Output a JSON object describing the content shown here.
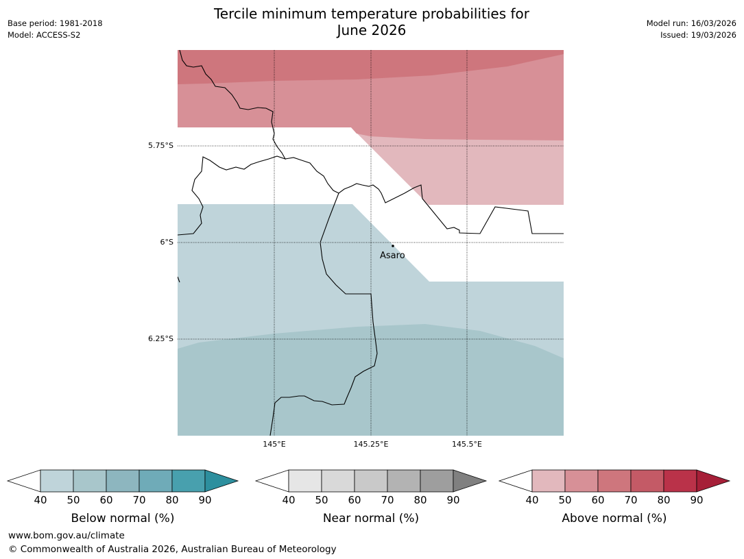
{
  "title_line1": "Tercile minimum temperature probabilities for",
  "title_line2": "June 2026",
  "meta_left": {
    "base_period": "Base period: 1981-2018",
    "model": "Model: ACCESS-S2"
  },
  "meta_right": {
    "model_run": "Model run: 16/03/2026",
    "issued": "Issued: 19/03/2026"
  },
  "map": {
    "lat_labels": [
      "5.75°S",
      "6°S",
      "6.25°S"
    ],
    "lon_labels": [
      "145°E",
      "145.25°E",
      "145.5°E"
    ],
    "place_label": "Asaro"
  },
  "legends": [
    {
      "title": "Below normal (%)",
      "ticks": [
        "40",
        "50",
        "60",
        "70",
        "80",
        "90"
      ],
      "colors": [
        "#bfd4da",
        "#a8c6cb",
        "#8db6bf",
        "#6fabb8",
        "#48a0ae",
        "#2d8f9e"
      ]
    },
    {
      "title": "Near normal (%)",
      "ticks": [
        "40",
        "50",
        "60",
        "70",
        "80",
        "90"
      ],
      "colors": [
        "#e6e6e6",
        "#d9d9d9",
        "#c9c9c9",
        "#b3b3b3",
        "#9e9e9e",
        "#808080"
      ]
    },
    {
      "title": "Above normal (%)",
      "ticks": [
        "40",
        "50",
        "60",
        "70",
        "80",
        "90"
      ],
      "colors": [
        "#e2b8bd",
        "#d79097",
        "#ce767d",
        "#c45a66",
        "#ba3249",
        "#a61f38"
      ]
    }
  ],
  "footer": {
    "url": "www.bom.gov.au/climate",
    "copyright": "© Commonwealth of Australia 2026, Australian Bureau of Meteorology"
  }
}
